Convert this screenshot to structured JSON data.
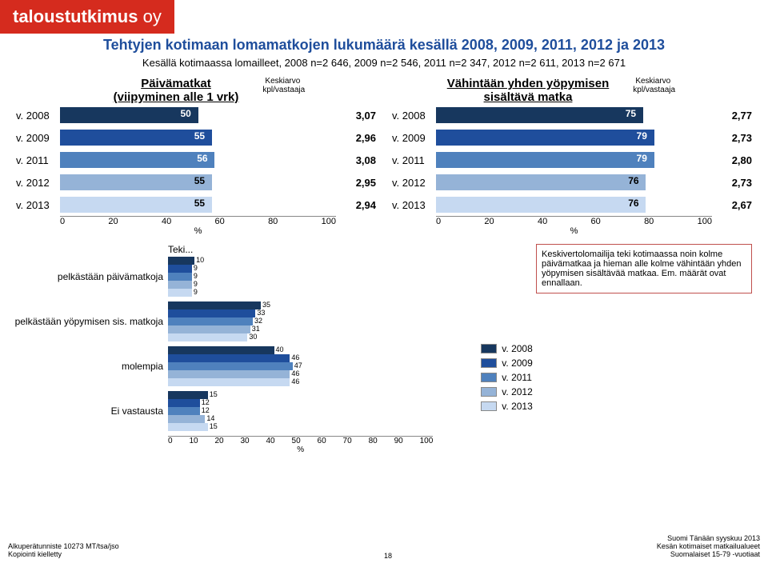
{
  "logo": {
    "bold": "taloustutkimus",
    "rest": " oy"
  },
  "title": "Tehtyjen kotimaan lomamatkojen lukumäärä kesällä 2008, 2009, 2011, 2012 ja 2013",
  "subtitle": "Kesällä kotimaassa lomailleet, 2008 n=2 646, 2009 n=2 546, 2011 n=2 347, 2012 n=2 611, 2013 n=2 671",
  "left_head": {
    "l1": "Päivämatkat",
    "l2": "(viipyminen alle 1 vrk)"
  },
  "right_head": {
    "l1": "Vähintään yhden yöpymisen",
    "l2": "sisältävä matka"
  },
  "avg_head": {
    "l1": "Keskiarvo",
    "l2": "kpl/vastaaja"
  },
  "colors": {
    "2008": "#17375e",
    "2009": "#1f4e9c",
    "2011": "#4f81bd",
    "2012": "#95b3d7",
    "2013": "#c6d9f1",
    "text_dark": "#000000"
  },
  "left_chart": {
    "max": 100,
    "rows": [
      {
        "label": "v. 2008",
        "value": 50,
        "avg": "3,07",
        "color": "#17375e"
      },
      {
        "label": "v. 2009",
        "value": 55,
        "avg": "2,96",
        "color": "#1f4e9c"
      },
      {
        "label": "v. 2011",
        "value": 56,
        "avg": "3,08",
        "color": "#4f81bd"
      },
      {
        "label": "v. 2012",
        "value": 55,
        "avg": "2,95",
        "color": "#95b3d7"
      },
      {
        "label": "v. 2013",
        "value": 55,
        "avg": "2,94",
        "color": "#c6d9f1"
      }
    ],
    "ticks": [
      0,
      20,
      40,
      60,
      80,
      100
    ],
    "axis_label": "%"
  },
  "right_chart": {
    "max": 100,
    "rows": [
      {
        "label": "v. 2008",
        "value": 75,
        "avg": "2,77",
        "color": "#17375e"
      },
      {
        "label": "v. 2009",
        "value": 79,
        "avg": "2,73",
        "color": "#1f4e9c"
      },
      {
        "label": "v. 2011",
        "value": 79,
        "avg": "2,80",
        "color": "#4f81bd"
      },
      {
        "label": "v. 2012",
        "value": 76,
        "avg": "2,73",
        "color": "#95b3d7"
      },
      {
        "label": "v. 2013",
        "value": 76,
        "avg": "2,67",
        "color": "#c6d9f1"
      }
    ],
    "ticks": [
      0,
      20,
      40,
      60,
      80,
      100
    ],
    "axis_label": "%"
  },
  "teki_label": "Teki...",
  "grouped": {
    "max": 100,
    "categories": [
      {
        "label": "pelkästään päivämatkoja",
        "values": [
          10,
          9,
          9,
          9,
          9
        ]
      },
      {
        "label": "pelkästään yöpymisen sis. matkoja",
        "values": [
          35,
          33,
          32,
          31,
          30
        ]
      },
      {
        "label": "molempia",
        "values": [
          40,
          46,
          47,
          46,
          46
        ]
      },
      {
        "label": "Ei vastausta",
        "values": [
          15,
          12,
          12,
          14,
          15
        ]
      }
    ],
    "series_colors": [
      "#17375e",
      "#1f4e9c",
      "#4f81bd",
      "#95b3d7",
      "#c6d9f1"
    ],
    "ticks": [
      0,
      10,
      20,
      30,
      40,
      50,
      60,
      70,
      80,
      90,
      100
    ],
    "axis_label": "%"
  },
  "note": "Keskivertolomailija teki kotimaassa noin kolme päivämatkaa ja hieman alle kolme vähintään yhden yöpymisen sisältävää matkaa. Em. määrät ovat ennallaan.",
  "legend": [
    {
      "label": "v. 2008",
      "color": "#17375e"
    },
    {
      "label": "v. 2009",
      "color": "#1f4e9c"
    },
    {
      "label": "v. 2011",
      "color": "#4f81bd"
    },
    {
      "label": "v. 2012",
      "color": "#95b3d7"
    },
    {
      "label": "v. 2013",
      "color": "#c6d9f1"
    }
  ],
  "footer_left": {
    "l1": "Alkuperätunniste 10273 MT/tsa/jso",
    "l2": "Kopiointi kielletty"
  },
  "footer_right": {
    "l1": "Suomi Tänään syyskuu 2013",
    "l2": "Kesän kotimaiset matkailualueet",
    "l3": "Suomalaiset 15-79 -vuotiaat"
  },
  "page_num": "18"
}
